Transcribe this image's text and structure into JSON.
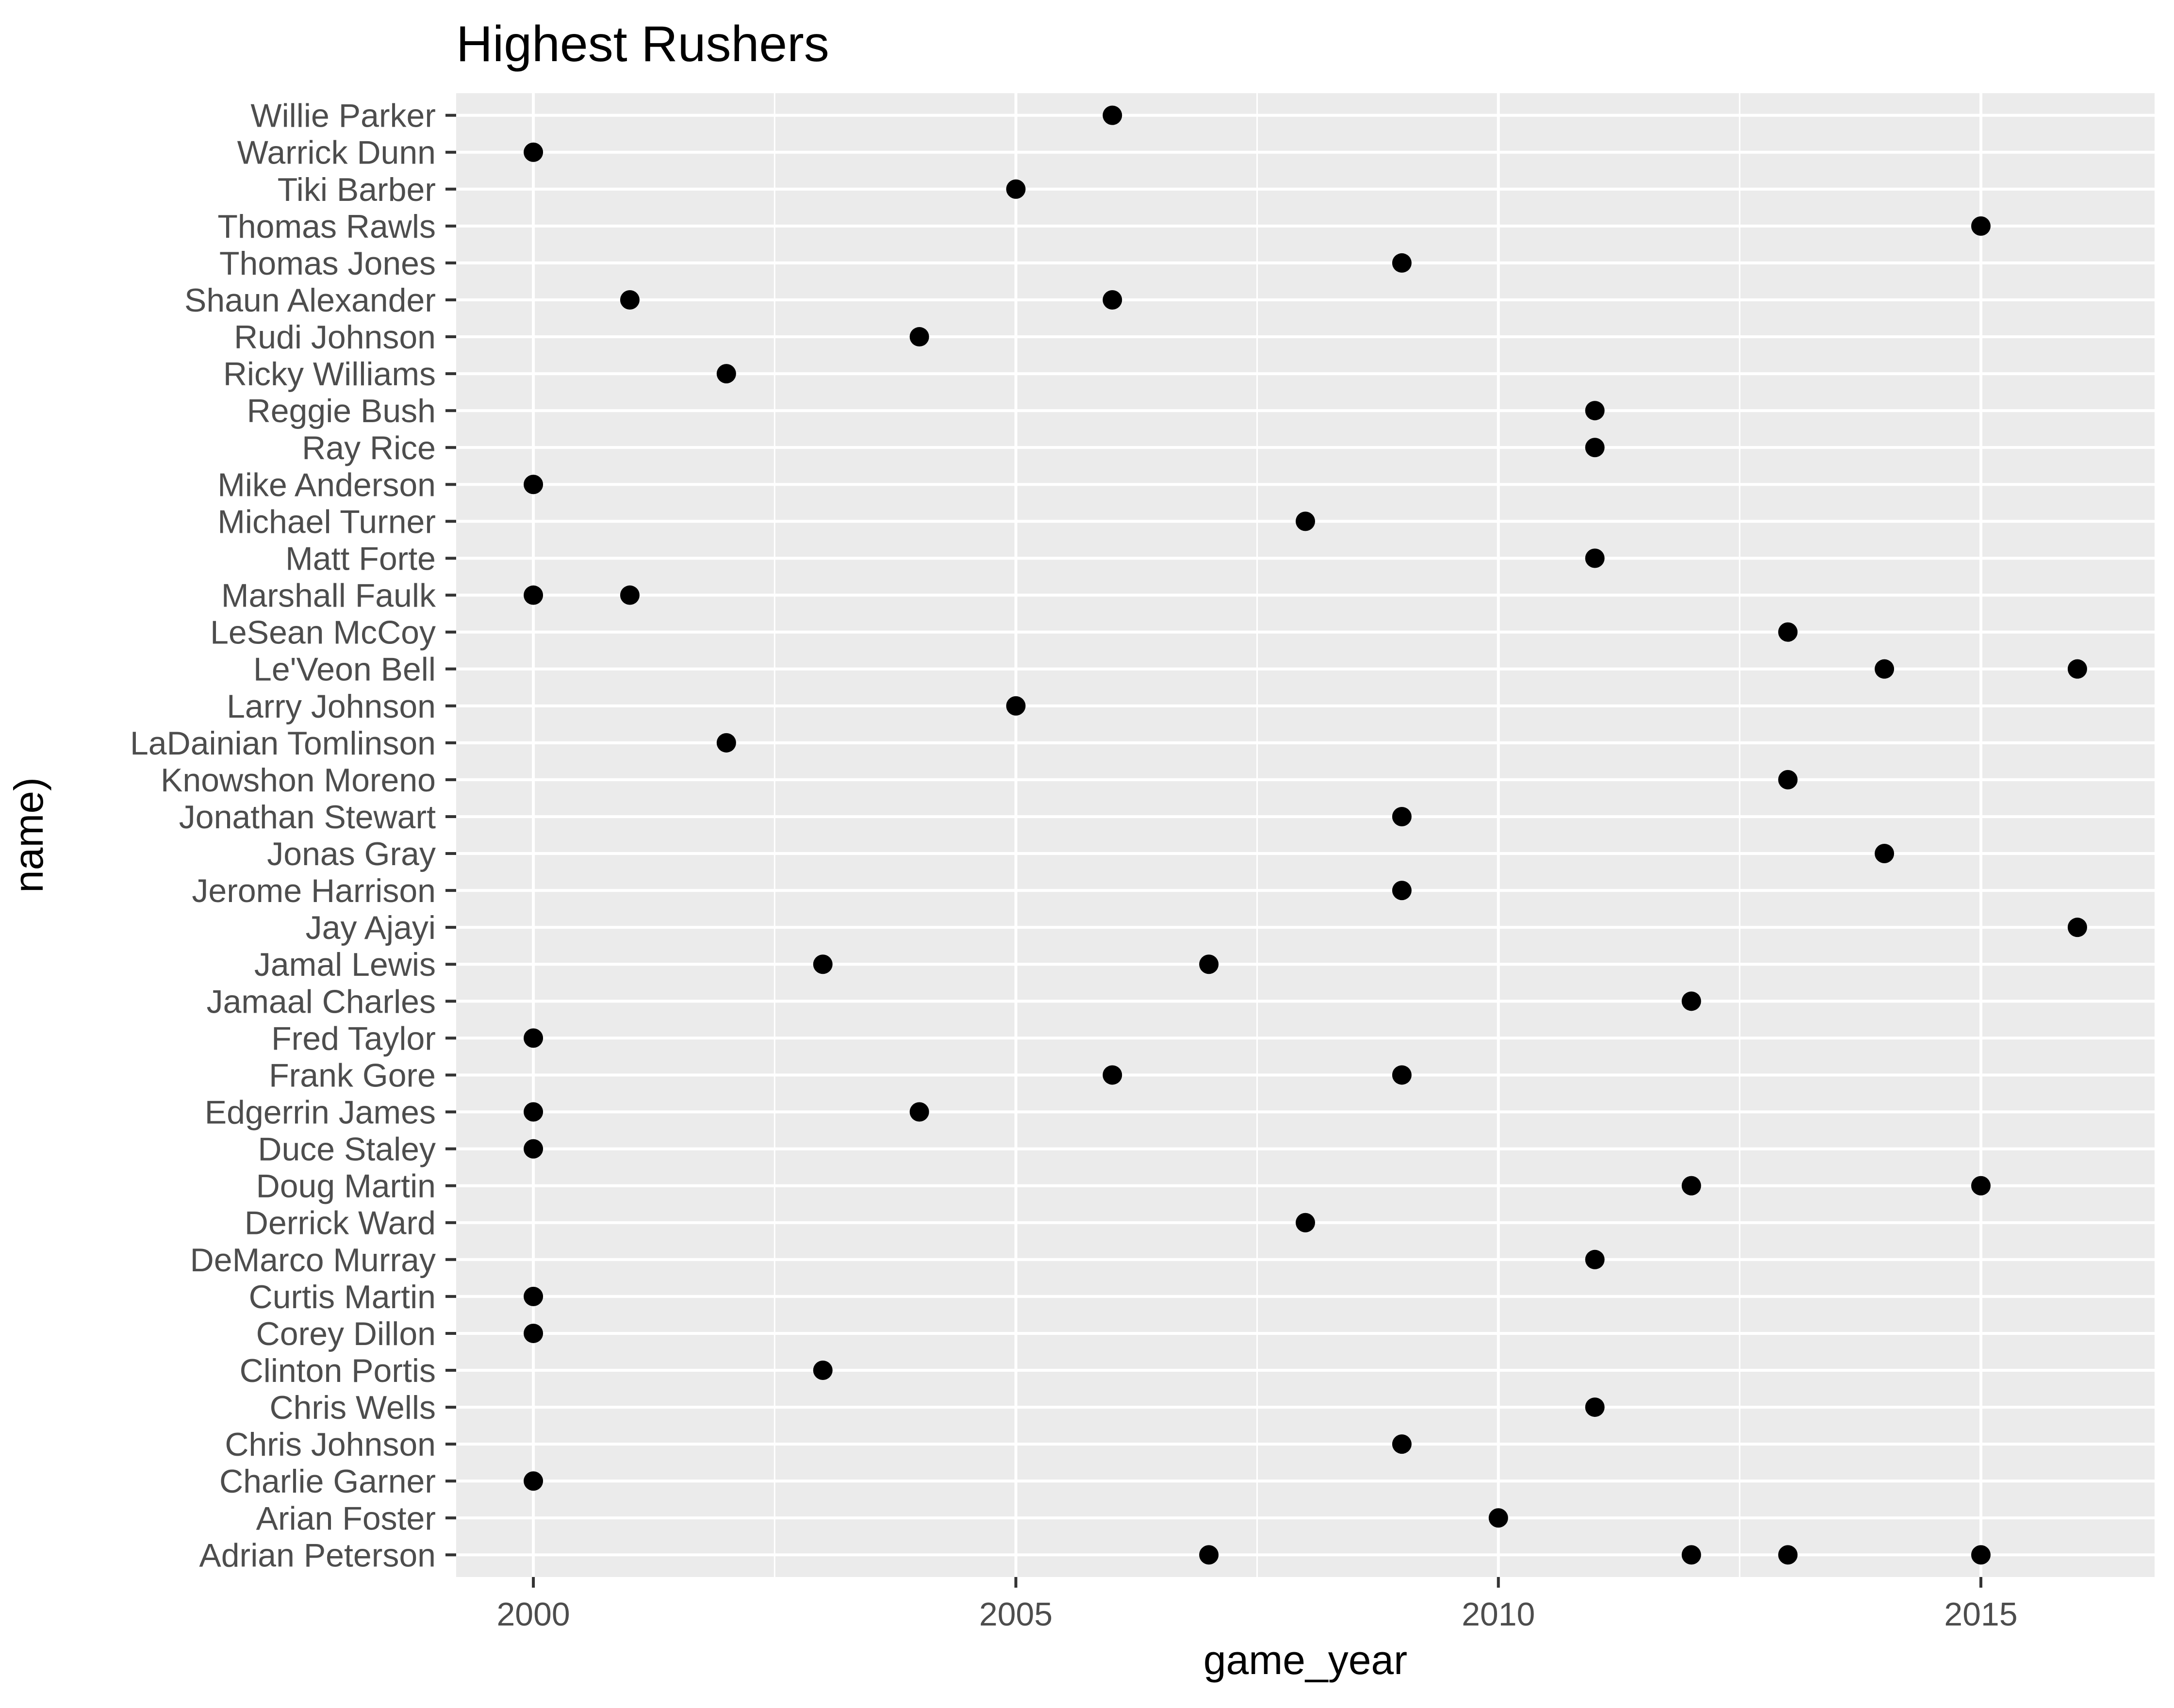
{
  "chart_data": {
    "type": "scatter",
    "title": "Highest Rushers",
    "xlabel": "game_year",
    "ylabel": "name)",
    "xlim": [
      1999.2,
      2016.8
    ],
    "x_ticks": [
      2000,
      2005,
      2010,
      2015
    ],
    "x_tick_labels": [
      "2000",
      "2005",
      "2010",
      "2015"
    ],
    "x_minor_ticks": [
      2002.5,
      2007.5,
      2012.5
    ],
    "grid": true,
    "legend": "none",
    "point_color": "#000000",
    "panel_color": "#ebebeb",
    "categories": [
      "Adrian Peterson",
      "Arian Foster",
      "Charlie Garner",
      "Chris Johnson",
      "Chris Wells",
      "Clinton Portis",
      "Corey Dillon",
      "Curtis Martin",
      "DeMarco Murray",
      "Derrick Ward",
      "Doug Martin",
      "Duce Staley",
      "Edgerrin James",
      "Frank Gore",
      "Fred Taylor",
      "Jamaal Charles",
      "Jamal Lewis",
      "Jay Ajayi",
      "Jerome Harrison",
      "Jonas Gray",
      "Jonathan Stewart",
      "Knowshon Moreno",
      "LaDainian Tomlinson",
      "Larry Johnson",
      "Le'Veon Bell",
      "LeSean McCoy",
      "Marshall Faulk",
      "Matt Forte",
      "Michael Turner",
      "Mike Anderson",
      "Ray Rice",
      "Reggie Bush",
      "Ricky Williams",
      "Rudi Johnson",
      "Shaun Alexander",
      "Thomas Jones",
      "Thomas Rawls",
      "Tiki Barber",
      "Warrick Dunn",
      "Willie Parker"
    ],
    "points": [
      {
        "name": "Adrian Peterson",
        "game_year": 2007
      },
      {
        "name": "Adrian Peterson",
        "game_year": 2012
      },
      {
        "name": "Adrian Peterson",
        "game_year": 2013
      },
      {
        "name": "Adrian Peterson",
        "game_year": 2015
      },
      {
        "name": "Arian Foster",
        "game_year": 2010
      },
      {
        "name": "Charlie Garner",
        "game_year": 2000
      },
      {
        "name": "Chris Johnson",
        "game_year": 2009
      },
      {
        "name": "Chris Wells",
        "game_year": 2011
      },
      {
        "name": "Clinton Portis",
        "game_year": 2003
      },
      {
        "name": "Corey Dillon",
        "game_year": 2000
      },
      {
        "name": "Curtis Martin",
        "game_year": 2000
      },
      {
        "name": "DeMarco Murray",
        "game_year": 2011
      },
      {
        "name": "Derrick Ward",
        "game_year": 2008
      },
      {
        "name": "Doug Martin",
        "game_year": 2012
      },
      {
        "name": "Doug Martin",
        "game_year": 2015
      },
      {
        "name": "Duce Staley",
        "game_year": 2000
      },
      {
        "name": "Edgerrin James",
        "game_year": 2000
      },
      {
        "name": "Edgerrin James",
        "game_year": 2004
      },
      {
        "name": "Frank Gore",
        "game_year": 2006
      },
      {
        "name": "Frank Gore",
        "game_year": 2009
      },
      {
        "name": "Fred Taylor",
        "game_year": 2000
      },
      {
        "name": "Jamaal Charles",
        "game_year": 2012
      },
      {
        "name": "Jamal Lewis",
        "game_year": 2003
      },
      {
        "name": "Jamal Lewis",
        "game_year": 2007
      },
      {
        "name": "Jay Ajayi",
        "game_year": 2016
      },
      {
        "name": "Jerome Harrison",
        "game_year": 2009
      },
      {
        "name": "Jonas Gray",
        "game_year": 2014
      },
      {
        "name": "Jonathan Stewart",
        "game_year": 2009
      },
      {
        "name": "Knowshon Moreno",
        "game_year": 2013
      },
      {
        "name": "LaDainian Tomlinson",
        "game_year": 2002
      },
      {
        "name": "Larry Johnson",
        "game_year": 2005
      },
      {
        "name": "Le'Veon Bell",
        "game_year": 2014
      },
      {
        "name": "Le'Veon Bell",
        "game_year": 2016
      },
      {
        "name": "LeSean McCoy",
        "game_year": 2013
      },
      {
        "name": "Marshall Faulk",
        "game_year": 2000
      },
      {
        "name": "Marshall Faulk",
        "game_year": 2001
      },
      {
        "name": "Matt Forte",
        "game_year": 2011
      },
      {
        "name": "Michael Turner",
        "game_year": 2008
      },
      {
        "name": "Mike Anderson",
        "game_year": 2000
      },
      {
        "name": "Ray Rice",
        "game_year": 2011
      },
      {
        "name": "Reggie Bush",
        "game_year": 2011
      },
      {
        "name": "Ricky Williams",
        "game_year": 2002
      },
      {
        "name": "Rudi Johnson",
        "game_year": 2004
      },
      {
        "name": "Shaun Alexander",
        "game_year": 2001
      },
      {
        "name": "Shaun Alexander",
        "game_year": 2006
      },
      {
        "name": "Thomas Jones",
        "game_year": 2009
      },
      {
        "name": "Thomas Rawls",
        "game_year": 2015
      },
      {
        "name": "Tiki Barber",
        "game_year": 2005
      },
      {
        "name": "Warrick Dunn",
        "game_year": 2000
      },
      {
        "name": "Willie Parker",
        "game_year": 2006
      }
    ]
  }
}
